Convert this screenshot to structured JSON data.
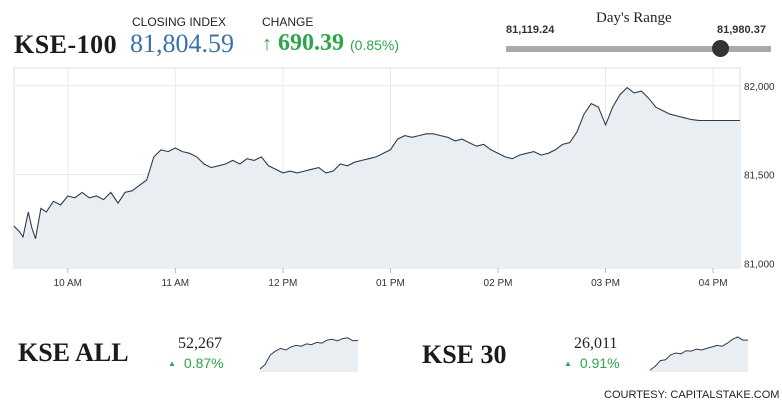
{
  "index_name": "KSE-100",
  "closing_index_label": "CLOSING INDEX",
  "closing_index_value": "81,804.59",
  "change_label": "CHANGE",
  "change_value": "690.39",
  "change_percent": "(0.85%)",
  "days_range": {
    "title": "Day's Range",
    "low": "81,119.24",
    "high": "81,980.37",
    "position_fraction": 0.81
  },
  "colors": {
    "up": "#2da54b",
    "closing_value": "#3a72a8",
    "area_fill": "#e9eef3",
    "line": "#2f3b4c"
  },
  "chart_data": {
    "type": "area",
    "x_ticks": [
      "10 AM",
      "11 AM",
      "12 PM",
      "01 PM",
      "02 PM",
      "03 PM",
      "04 PM"
    ],
    "y_ticks": [
      "82,000",
      "81,500",
      "81,000"
    ],
    "ylim": [
      80975,
      82100
    ],
    "grid": true,
    "series": [
      {
        "points": [
          [
            "09:30",
            81210
          ],
          [
            "09:33",
            81180
          ],
          [
            "09:35",
            81150
          ],
          [
            "09:38",
            81290
          ],
          [
            "09:40",
            81200
          ],
          [
            "09:42",
            81140
          ],
          [
            "09:45",
            81310
          ],
          [
            "09:48",
            81290
          ],
          [
            "09:52",
            81350
          ],
          [
            "09:56",
            81330
          ],
          [
            "10:00",
            81380
          ],
          [
            "10:04",
            81370
          ],
          [
            "10:08",
            81400
          ],
          [
            "10:12",
            81370
          ],
          [
            "10:16",
            81380
          ],
          [
            "10:20",
            81360
          ],
          [
            "10:24",
            81400
          ],
          [
            "10:28",
            81340
          ],
          [
            "10:32",
            81400
          ],
          [
            "10:36",
            81410
          ],
          [
            "10:40",
            81440
          ],
          [
            "10:44",
            81470
          ],
          [
            "10:48",
            81600
          ],
          [
            "10:52",
            81640
          ],
          [
            "10:56",
            81630
          ],
          [
            "11:00",
            81650
          ],
          [
            "11:04",
            81630
          ],
          [
            "11:08",
            81620
          ],
          [
            "11:12",
            81600
          ],
          [
            "11:16",
            81560
          ],
          [
            "11:20",
            81540
          ],
          [
            "11:24",
            81550
          ],
          [
            "11:28",
            81560
          ],
          [
            "11:32",
            81580
          ],
          [
            "11:36",
            81560
          ],
          [
            "11:40",
            81590
          ],
          [
            "11:44",
            81580
          ],
          [
            "11:48",
            81600
          ],
          [
            "11:52",
            81550
          ],
          [
            "11:56",
            81530
          ],
          [
            "12:00",
            81510
          ],
          [
            "12:04",
            81520
          ],
          [
            "12:08",
            81510
          ],
          [
            "12:12",
            81520
          ],
          [
            "12:16",
            81530
          ],
          [
            "12:20",
            81540
          ],
          [
            "12:24",
            81510
          ],
          [
            "12:28",
            81520
          ],
          [
            "12:32",
            81560
          ],
          [
            "12:36",
            81550
          ],
          [
            "12:40",
            81570
          ],
          [
            "12:44",
            81580
          ],
          [
            "12:48",
            81590
          ],
          [
            "12:52",
            81600
          ],
          [
            "12:56",
            81620
          ],
          [
            "13:00",
            81640
          ],
          [
            "13:04",
            81700
          ],
          [
            "13:08",
            81720
          ],
          [
            "13:12",
            81710
          ],
          [
            "13:16",
            81720
          ],
          [
            "13:20",
            81730
          ],
          [
            "13:24",
            81730
          ],
          [
            "13:28",
            81720
          ],
          [
            "13:32",
            81710
          ],
          [
            "13:36",
            81690
          ],
          [
            "13:40",
            81700
          ],
          [
            "13:44",
            81680
          ],
          [
            "13:48",
            81660
          ],
          [
            "13:52",
            81670
          ],
          [
            "13:56",
            81640
          ],
          [
            "14:00",
            81620
          ],
          [
            "14:04",
            81600
          ],
          [
            "14:08",
            81590
          ],
          [
            "14:12",
            81610
          ],
          [
            "14:16",
            81620
          ],
          [
            "14:20",
            81630
          ],
          [
            "14:24",
            81610
          ],
          [
            "14:28",
            81620
          ],
          [
            "14:32",
            81640
          ],
          [
            "14:36",
            81670
          ],
          [
            "14:40",
            81680
          ],
          [
            "14:44",
            81740
          ],
          [
            "14:48",
            81840
          ],
          [
            "14:52",
            81900
          ],
          [
            "14:56",
            81880
          ],
          [
            "15:00",
            81780
          ],
          [
            "15:04",
            81880
          ],
          [
            "15:08",
            81950
          ],
          [
            "15:12",
            81990
          ],
          [
            "15:16",
            81960
          ],
          [
            "15:20",
            81970
          ],
          [
            "15:24",
            81930
          ],
          [
            "15:28",
            81880
          ],
          [
            "15:32",
            81860
          ],
          [
            "15:36",
            81840
          ],
          [
            "15:40",
            81830
          ],
          [
            "15:44",
            81820
          ],
          [
            "15:48",
            81810
          ],
          [
            "15:52",
            81805
          ],
          [
            "16:00",
            81804.59
          ],
          [
            "16:15",
            81804.59
          ]
        ]
      }
    ]
  },
  "kse_all": {
    "name": "KSE ALL",
    "value": "52,267",
    "percent": "0.87%",
    "spark": [
      0.08,
      0.2,
      0.45,
      0.55,
      0.62,
      0.58,
      0.66,
      0.7,
      0.68,
      0.74,
      0.72,
      0.78,
      0.76,
      0.84,
      0.86,
      0.82,
      0.88,
      0.9,
      0.82,
      0.83
    ]
  },
  "kse_30": {
    "name": "KSE 30",
    "value": "26,011",
    "percent": "0.91%",
    "spark": [
      0.05,
      0.15,
      0.3,
      0.32,
      0.45,
      0.5,
      0.48,
      0.56,
      0.55,
      0.6,
      0.58,
      0.62,
      0.66,
      0.7,
      0.68,
      0.76,
      0.86,
      0.92,
      0.84,
      0.84
    ]
  },
  "courtesy": "COURTESY: CAPITALSTAKE.COM"
}
